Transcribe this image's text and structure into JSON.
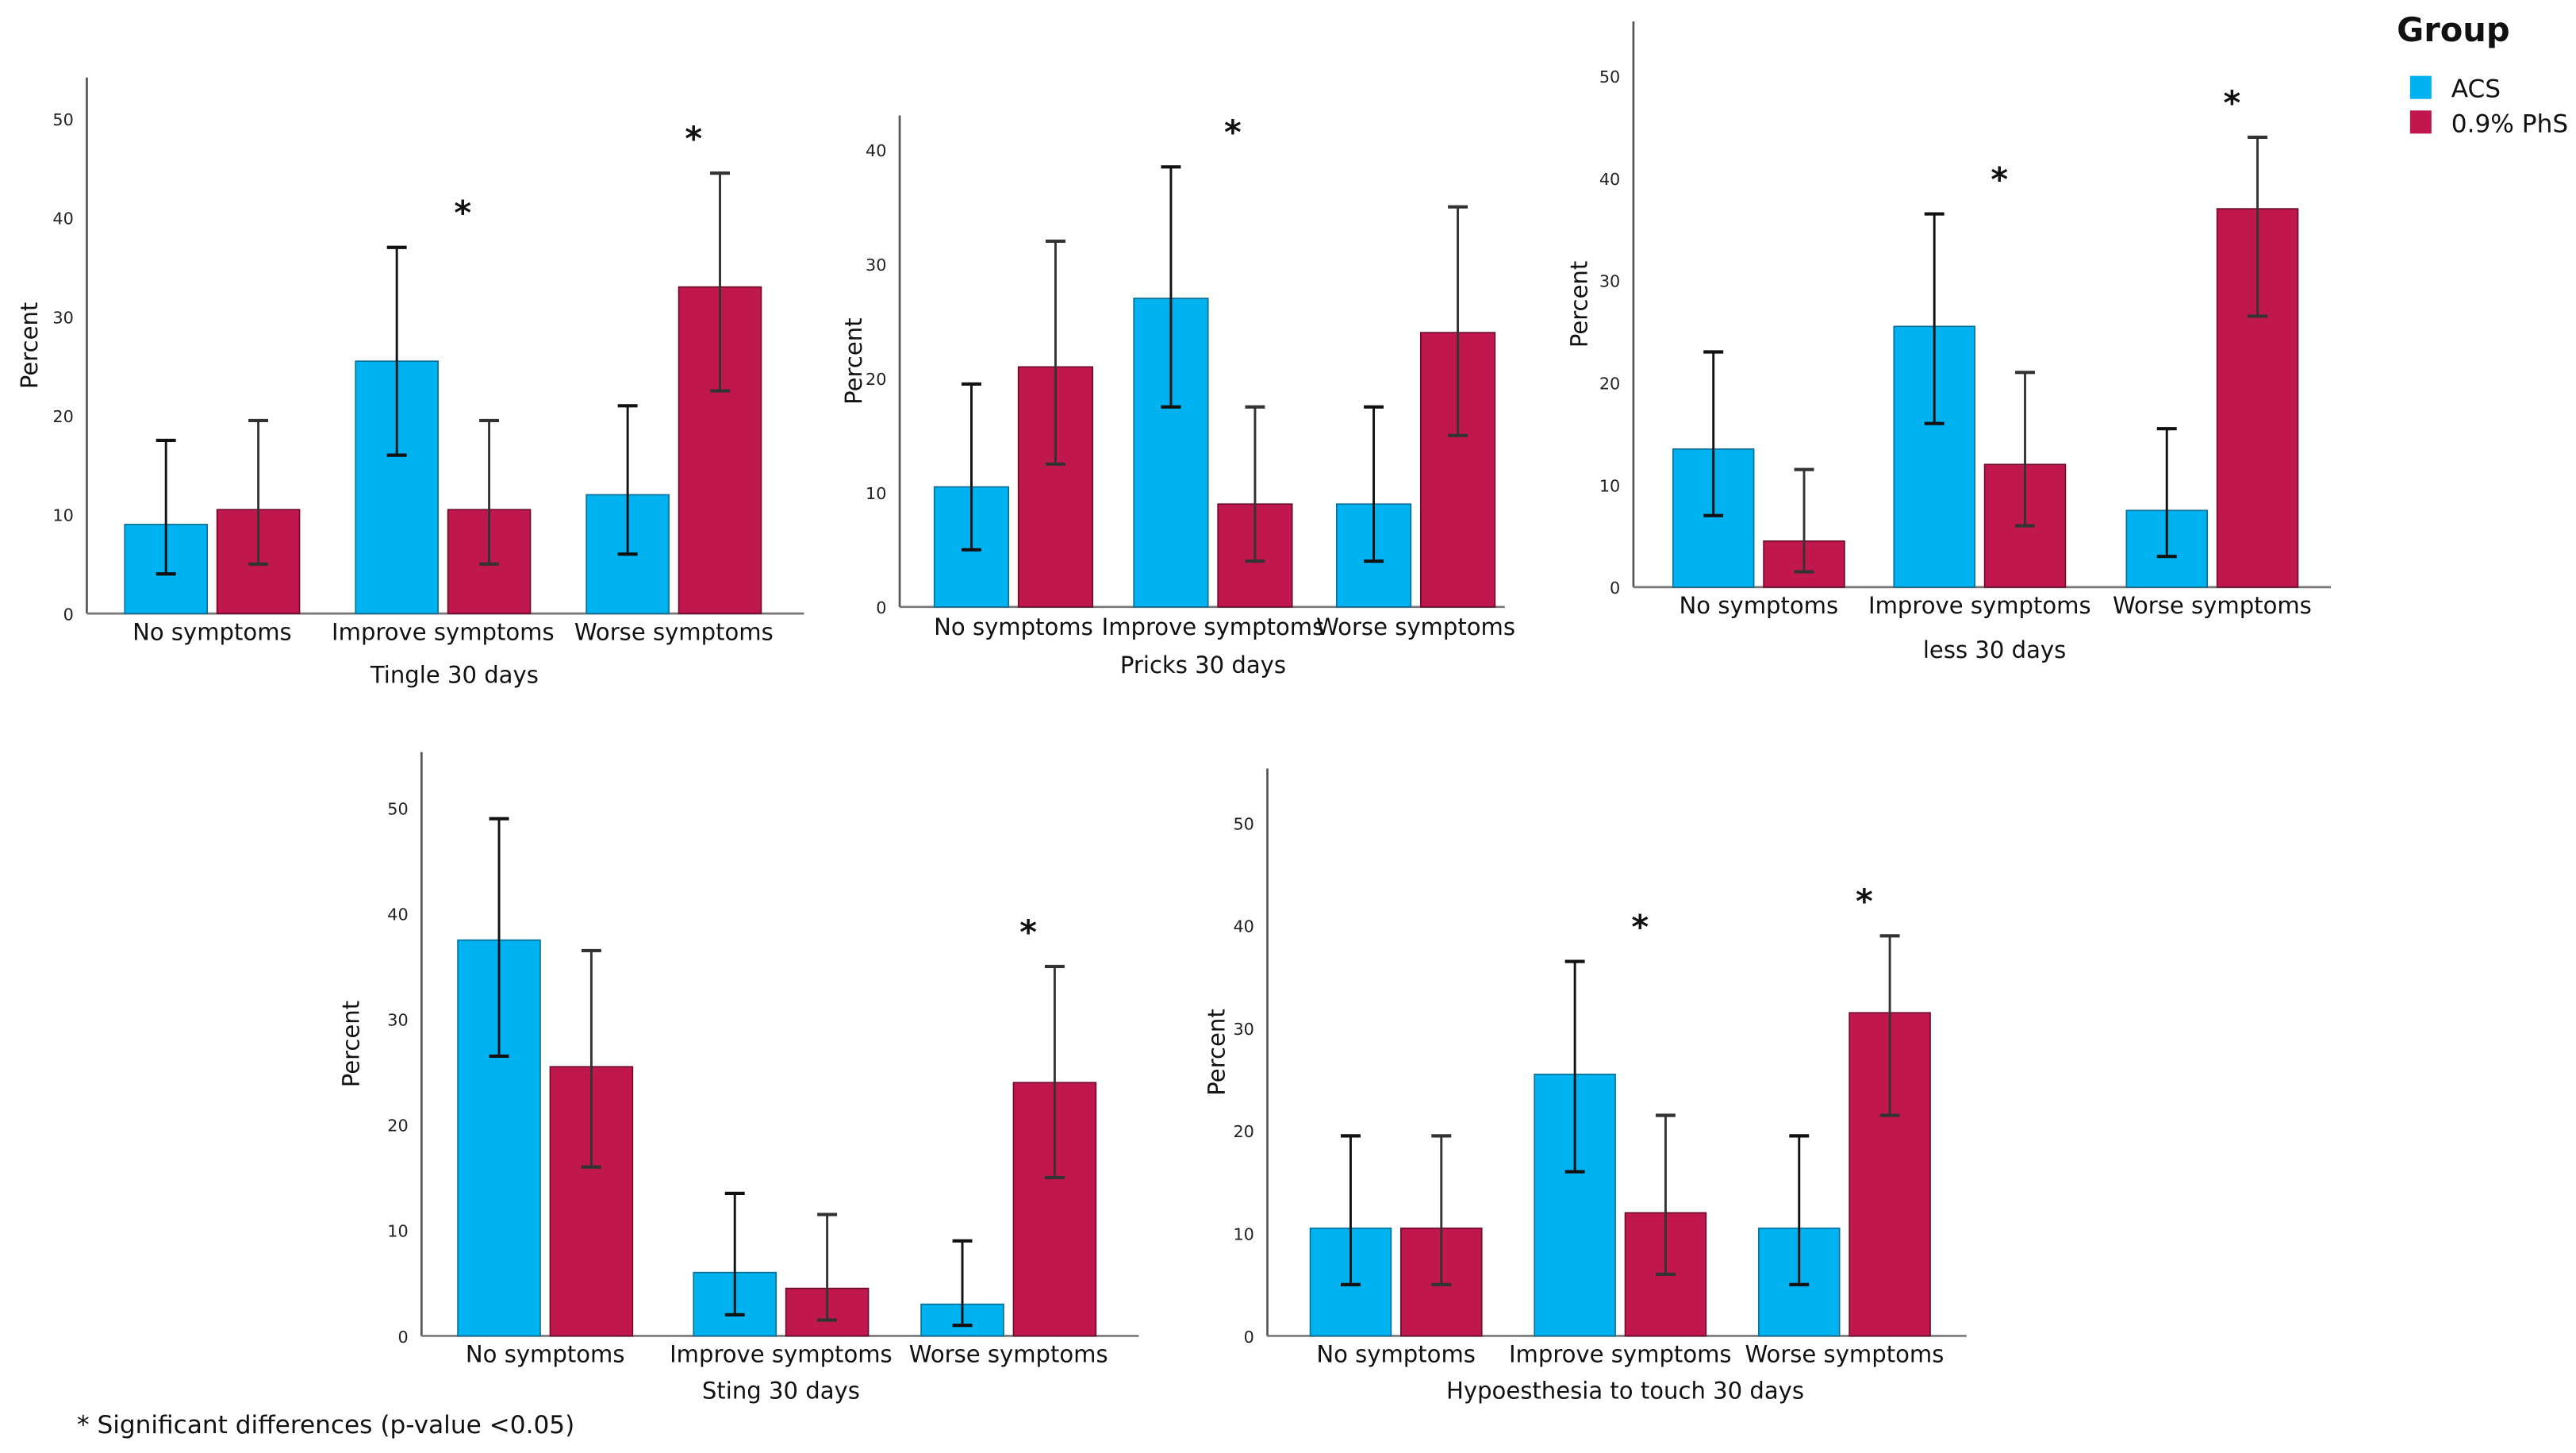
{
  "legend": {
    "title": "Group",
    "items": [
      {
        "label": "ACS",
        "color": "#00B2F0"
      },
      {
        "label": "0.9% PhS",
        "color": "#C0174F"
      }
    ]
  },
  "footnote": "*  Significant differences (p-value <0.05)",
  "chart_data": [
    {
      "type": "bar",
      "title": "",
      "xlabel": "Tingle 30 days",
      "ylabel": "Percent",
      "ylim": [
        0,
        50
      ],
      "yticks": [
        0,
        10,
        20,
        30,
        40,
        50
      ],
      "categories": [
        "No symptoms",
        "Improve symptoms",
        "Worse symptoms"
      ],
      "series": [
        {
          "name": "ACS",
          "values": [
            9,
            25.5,
            12
          ],
          "err_low": [
            4,
            16,
            6
          ],
          "err_high": [
            17.5,
            37,
            21
          ]
        },
        {
          "name": "0.9% PhS",
          "values": [
            10.5,
            10.5,
            33
          ],
          "err_low": [
            5,
            5,
            22.5
          ],
          "err_high": [
            19.5,
            19.5,
            44.5
          ]
        }
      ],
      "significant": [
        false,
        true,
        true
      ]
    },
    {
      "type": "bar",
      "title": "",
      "xlabel": "Pricks 30 days",
      "ylabel": "Percent",
      "ylim": [
        0,
        40
      ],
      "yticks": [
        0,
        10,
        20,
        30,
        40
      ],
      "categories": [
        "No symptoms",
        "Improve symptoms",
        "Worse symptoms"
      ],
      "series": [
        {
          "name": "ACS",
          "values": [
            10.5,
            27,
            9
          ],
          "err_low": [
            5,
            17.5,
            4
          ],
          "err_high": [
            19.5,
            38.5,
            17.5
          ]
        },
        {
          "name": "0.9% PhS",
          "values": [
            21,
            9,
            24
          ],
          "err_low": [
            12.5,
            4,
            15
          ],
          "err_high": [
            32,
            17.5,
            35
          ]
        }
      ],
      "significant": [
        false,
        true,
        false
      ]
    },
    {
      "type": "bar",
      "title": "",
      "xlabel": "less 30 days",
      "ylabel": "Percent",
      "ylim": [
        0,
        50
      ],
      "yticks": [
        0,
        10,
        20,
        30,
        40,
        50
      ],
      "categories": [
        "No symptoms",
        "Improve symptoms",
        "Worse symptoms"
      ],
      "series": [
        {
          "name": "ACS",
          "values": [
            13.5,
            25.5,
            7.5
          ],
          "err_low": [
            7,
            16,
            3
          ],
          "err_high": [
            23,
            36.5,
            15.5
          ]
        },
        {
          "name": "0.9% PhS",
          "values": [
            4.5,
            12,
            37
          ],
          "err_low": [
            1.5,
            6,
            26.5
          ],
          "err_high": [
            11.5,
            21,
            44
          ]
        }
      ],
      "significant": [
        false,
        true,
        true
      ]
    },
    {
      "type": "bar",
      "title": "",
      "xlabel": "Sting 30 days",
      "ylabel": "Percent",
      "ylim": [
        0,
        50
      ],
      "yticks": [
        0,
        10,
        20,
        30,
        40,
        50
      ],
      "categories": [
        "No symptoms",
        "Improve symptoms",
        "Worse symptoms"
      ],
      "series": [
        {
          "name": "ACS",
          "values": [
            37.5,
            6,
            3
          ],
          "err_low": [
            26.5,
            2,
            1
          ],
          "err_high": [
            49,
            13.5,
            9
          ]
        },
        {
          "name": "0.9% PhS",
          "values": [
            25.5,
            4.5,
            24
          ],
          "err_low": [
            16,
            1.5,
            15
          ],
          "err_high": [
            36.5,
            11.5,
            35
          ]
        }
      ],
      "significant": [
        false,
        false,
        true
      ]
    },
    {
      "type": "bar",
      "title": "",
      "xlabel": "Hypoesthesia to touch 30 days",
      "ylabel": "Percent",
      "ylim": [
        0,
        50
      ],
      "yticks": [
        0,
        10,
        20,
        30,
        40,
        50
      ],
      "categories": [
        "No symptoms",
        "Improve symptoms",
        "Worse symptoms"
      ],
      "series": [
        {
          "name": "ACS",
          "values": [
            10.5,
            25.5,
            10.5
          ],
          "err_low": [
            5,
            16,
            5
          ],
          "err_high": [
            19.5,
            36.5,
            19.5
          ]
        },
        {
          "name": "0.9% PhS",
          "values": [
            10.5,
            12,
            31.5
          ],
          "err_low": [
            5,
            6,
            21.5
          ],
          "err_high": [
            19.5,
            21.5,
            39
          ]
        }
      ],
      "significant": [
        false,
        true,
        true
      ]
    }
  ]
}
